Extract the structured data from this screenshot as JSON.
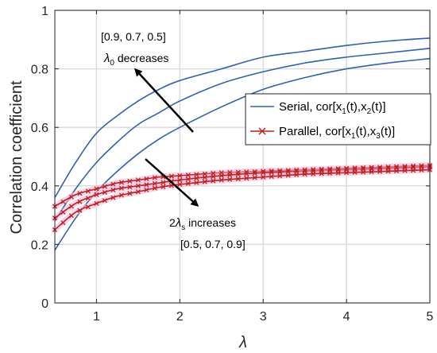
{
  "chart_data": {
    "type": "line",
    "xlabel": "λ",
    "ylabel": "Correlation coefficient",
    "xlim": [
      0.5,
      5
    ],
    "ylim": [
      0,
      1
    ],
    "xticks": [
      1,
      2,
      3,
      4,
      5
    ],
    "yticks": [
      0,
      0.2,
      0.4,
      0.6,
      0.8,
      1
    ],
    "ytick_labels": [
      "0",
      "0.2",
      "0.4",
      "0.6",
      "0.8",
      "1"
    ],
    "grid": true,
    "legend_position": "right",
    "legend": [
      {
        "pre": "Serial, cor[x",
        "s1": "1",
        "mid": "(t),x",
        "s2": "2",
        "post": "(t)]",
        "color": "#3061b0",
        "marker": "none"
      },
      {
        "pre": "Parallel, cor[x",
        "s1": "1",
        "mid": "(t),x",
        "s2": "3",
        "post": "(t)]",
        "color": "#c0201f",
        "marker": "x"
      }
    ],
    "annotations": {
      "serial_values": "[0.9, 0.7, 0.5]",
      "serial_symbol": "λ",
      "serial_sub": "0",
      "serial_text": " decreases",
      "parallel_prefix": "2",
      "parallel_symbol": "λ",
      "parallel_sub": "s",
      "parallel_text": " increases",
      "parallel_values": "[0.5, 0.7, 0.9]"
    },
    "x": [
      0.5,
      0.75,
      1,
      1.25,
      1.5,
      1.75,
      2,
      2.5,
      3,
      3.5,
      4,
      4.5,
      5
    ],
    "series": [
      {
        "group": "serial",
        "color": "#3061b0",
        "values": [
          0.36,
          0.48,
          0.58,
          0.64,
          0.69,
          0.73,
          0.76,
          0.8,
          0.84,
          0.86,
          0.88,
          0.895,
          0.905
        ]
      },
      {
        "group": "serial",
        "color": "#3061b0",
        "values": [
          0.28,
          0.39,
          0.48,
          0.55,
          0.61,
          0.65,
          0.69,
          0.75,
          0.79,
          0.82,
          0.84,
          0.855,
          0.87
        ]
      },
      {
        "group": "serial",
        "color": "#3061b0",
        "values": [
          0.18,
          0.29,
          0.38,
          0.45,
          0.51,
          0.56,
          0.6,
          0.67,
          0.73,
          0.77,
          0.8,
          0.82,
          0.835
        ]
      },
      {
        "group": "parallel",
        "color": "#c0201f",
        "values": [
          0.33,
          0.37,
          0.39,
          0.41,
          0.42,
          0.43,
          0.435,
          0.445,
          0.45,
          0.455,
          0.46,
          0.465,
          0.47
        ]
      },
      {
        "group": "parallel",
        "color": "#c0201f",
        "values": [
          0.29,
          0.34,
          0.37,
          0.39,
          0.4,
          0.41,
          0.42,
          0.435,
          0.445,
          0.45,
          0.455,
          0.46,
          0.465
        ]
      },
      {
        "group": "parallel",
        "color": "#c0201f",
        "values": [
          0.25,
          0.31,
          0.34,
          0.365,
          0.38,
          0.395,
          0.405,
          0.42,
          0.43,
          0.44,
          0.445,
          0.45,
          0.455
        ]
      }
    ]
  }
}
